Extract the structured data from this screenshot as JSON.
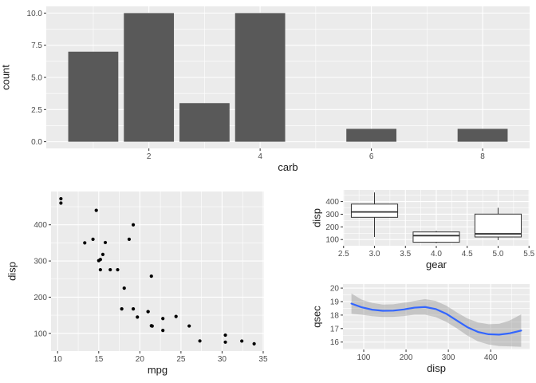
{
  "figure": {
    "background": "#FFFFFF",
    "panel_background": "#EBEBEB",
    "grid_color": "#FFFFFF",
    "tick_color": "#333333",
    "tick_label_color": "#4D4D4D",
    "axis_title_color": "#1A1A1A",
    "bar_fill": "#595959",
    "point_color": "#000000",
    "box_fill": "#FFFFFF",
    "box_stroke": "#333333",
    "smooth_line_color": "#3366FF",
    "smooth_band_color": "rgba(127,127,127,0.35)"
  },
  "chart_data": [
    {
      "id": "bar",
      "type": "bar",
      "title": "",
      "xlabel": "carb",
      "ylabel": "count",
      "x": [
        1,
        2,
        3,
        4,
        6,
        8
      ],
      "values": [
        7,
        10,
        3,
        10,
        1,
        1
      ],
      "bar_width": 0.9,
      "xlim": [
        0.155,
        8.845
      ],
      "ylim": [
        -0.52,
        10.52
      ],
      "x_ticks": [
        2,
        4,
        6,
        8
      ],
      "x_tick_labels": [
        "2",
        "4",
        "6",
        "8"
      ],
      "y_ticks": [
        0,
        2.5,
        5,
        7.5,
        10
      ],
      "y_tick_labels": [
        "0.0",
        "2.5",
        "5.0",
        "7.5",
        "10.0"
      ],
      "grid": true,
      "legend": "none"
    },
    {
      "id": "scatter",
      "type": "scatter",
      "title": "",
      "xlabel": "mpg",
      "ylabel": "disp",
      "points": [
        [
          21.0,
          160.0
        ],
        [
          21.0,
          160.0
        ],
        [
          22.8,
          108.0
        ],
        [
          21.4,
          258.0
        ],
        [
          18.7,
          360.0
        ],
        [
          18.1,
          225.0
        ],
        [
          14.3,
          360.0
        ],
        [
          24.4,
          146.7
        ],
        [
          22.8,
          140.8
        ],
        [
          19.2,
          167.6
        ],
        [
          17.8,
          167.6
        ],
        [
          16.4,
          275.8
        ],
        [
          17.3,
          275.8
        ],
        [
          15.2,
          275.8
        ],
        [
          10.4,
          472.0
        ],
        [
          10.4,
          460.0
        ],
        [
          14.7,
          440.0
        ],
        [
          32.4,
          78.7
        ],
        [
          30.4,
          75.7
        ],
        [
          33.9,
          71.1
        ],
        [
          21.5,
          120.1
        ],
        [
          15.5,
          318.0
        ],
        [
          15.2,
          304.0
        ],
        [
          13.3,
          350.0
        ],
        [
          19.2,
          400.0
        ],
        [
          27.3,
          79.0
        ],
        [
          26.0,
          120.3
        ],
        [
          30.4,
          95.1
        ],
        [
          15.8,
          351.0
        ],
        [
          19.7,
          145.0
        ],
        [
          15.0,
          301.0
        ],
        [
          21.4,
          121.0
        ]
      ],
      "xlim": [
        9.2,
        35.1
      ],
      "ylim": [
        51,
        492
      ],
      "x_ticks": [
        10,
        15,
        20,
        25,
        30,
        35
      ],
      "x_tick_labels": [
        "10",
        "15",
        "20",
        "25",
        "30",
        "35"
      ],
      "y_ticks": [
        100,
        200,
        300,
        400
      ],
      "y_tick_labels": [
        "100",
        "200",
        "300",
        "400"
      ],
      "grid": true,
      "legend": "none"
    },
    {
      "id": "box",
      "type": "boxplot",
      "title": "",
      "xlabel": "gear",
      "ylabel": "disp",
      "boxes": [
        {
          "x": 3,
          "min": 120.1,
          "q1": 275.8,
          "median": 318.0,
          "q3": 380.0,
          "max": 472.0
        },
        {
          "x": 4,
          "min": 71.1,
          "q1": 78.9,
          "median": 130.9,
          "q3": 160.0,
          "max": 167.6
        },
        {
          "x": 5,
          "min": 95.1,
          "q1": 120.3,
          "median": 145.0,
          "q3": 301.0,
          "max": 351.0
        }
      ],
      "box_width": 0.75,
      "xlim": [
        2.49,
        5.51
      ],
      "ylim": [
        51,
        492
      ],
      "x_ticks": [
        2.5,
        3.0,
        3.5,
        4.0,
        4.5,
        5.0,
        5.5
      ],
      "x_tick_labels": [
        "2.5",
        "3.0",
        "3.5",
        "4.0",
        "4.5",
        "5.0",
        "5.5"
      ],
      "y_ticks": [
        100,
        200,
        300,
        400
      ],
      "y_tick_labels": [
        "100",
        "200",
        "300",
        "400"
      ],
      "grid": true,
      "legend": "none"
    },
    {
      "id": "smooth",
      "type": "line",
      "title": "",
      "xlabel": "disp",
      "ylabel": "qsec",
      "x": [
        71,
        95,
        120,
        145,
        170,
        195,
        220,
        245,
        270,
        295,
        320,
        345,
        370,
        395,
        420,
        445,
        472
      ],
      "y": [
        18.85,
        18.58,
        18.4,
        18.32,
        18.33,
        18.42,
        18.55,
        18.6,
        18.45,
        18.1,
        17.6,
        17.1,
        16.75,
        16.58,
        16.55,
        16.65,
        16.85
      ],
      "band_upper": [
        19.6,
        19.15,
        18.9,
        18.78,
        18.8,
        18.92,
        19.05,
        19.18,
        19.05,
        18.7,
        18.2,
        17.75,
        17.45,
        17.32,
        17.35,
        17.6,
        18.05
      ],
      "band_lower": [
        18.1,
        18.02,
        17.92,
        17.86,
        17.87,
        17.93,
        18.02,
        18.02,
        17.85,
        17.5,
        17.02,
        16.48,
        16.05,
        15.82,
        15.7,
        15.68,
        15.65
      ],
      "xlim": [
        51,
        492
      ],
      "ylim": [
        15.45,
        20.3
      ],
      "x_ticks": [
        100,
        200,
        300,
        400
      ],
      "x_tick_labels": [
        "100",
        "200",
        "300",
        "400"
      ],
      "y_ticks": [
        16,
        17,
        18,
        19,
        20
      ],
      "y_tick_labels": [
        "16",
        "17",
        "18",
        "19",
        "20"
      ],
      "grid": true,
      "legend": "none"
    }
  ]
}
